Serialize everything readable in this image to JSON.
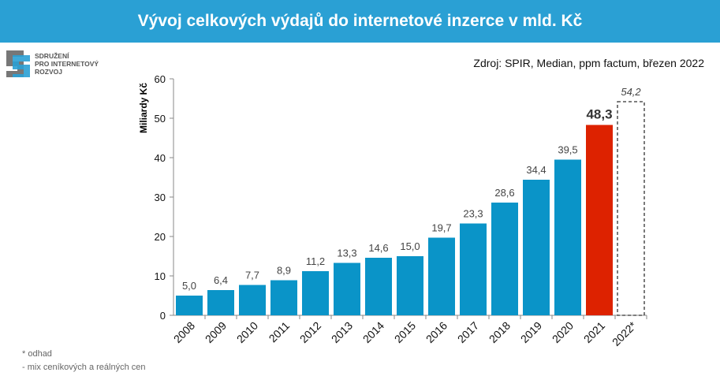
{
  "header": {
    "title": "Vývoj celkových výdajů do internetové inzerce v mld. Kč"
  },
  "source": "Zdroj: SPIR, Median, ppm factum, březen 2022",
  "logo": {
    "lines": [
      "SDRUŽENÍ",
      "PRO INTERNETOVÝ",
      "ROZVOJ"
    ]
  },
  "notes": [
    "* odhad",
    "- mix ceníkových a reálných cen"
  ],
  "chart_data": {
    "type": "bar",
    "title": "Vývoj celkových výdajů do internetové inzerce v mld. Kč",
    "ylabel": "Miliardy Kč",
    "xlabel": "",
    "ylim": [
      0,
      60
    ],
    "yticks": [
      0,
      10,
      20,
      30,
      40,
      50,
      60
    ],
    "categories": [
      "2008",
      "2009",
      "2010",
      "2011",
      "2012",
      "2013",
      "2014",
      "2015",
      "2016",
      "2017",
      "2018",
      "2019",
      "2020",
      "2021",
      "2022*"
    ],
    "values": [
      5.0,
      6.4,
      7.7,
      8.9,
      11.2,
      13.3,
      14.6,
      15.0,
      19.7,
      23.3,
      28.6,
      34.4,
      39.5,
      48.3,
      54.2
    ],
    "labels": [
      "5,0",
      "6,4",
      "7,7",
      "8,9",
      "11,2",
      "13,3",
      "14,6",
      "15,0",
      "19,7",
      "23,3",
      "28,6",
      "34,4",
      "39,5",
      "48,3",
      "54,2"
    ],
    "colors": {
      "default": "#0a94c8",
      "highlight": "#dd2200",
      "estimate": "dashed-outline"
    },
    "grid": false
  }
}
